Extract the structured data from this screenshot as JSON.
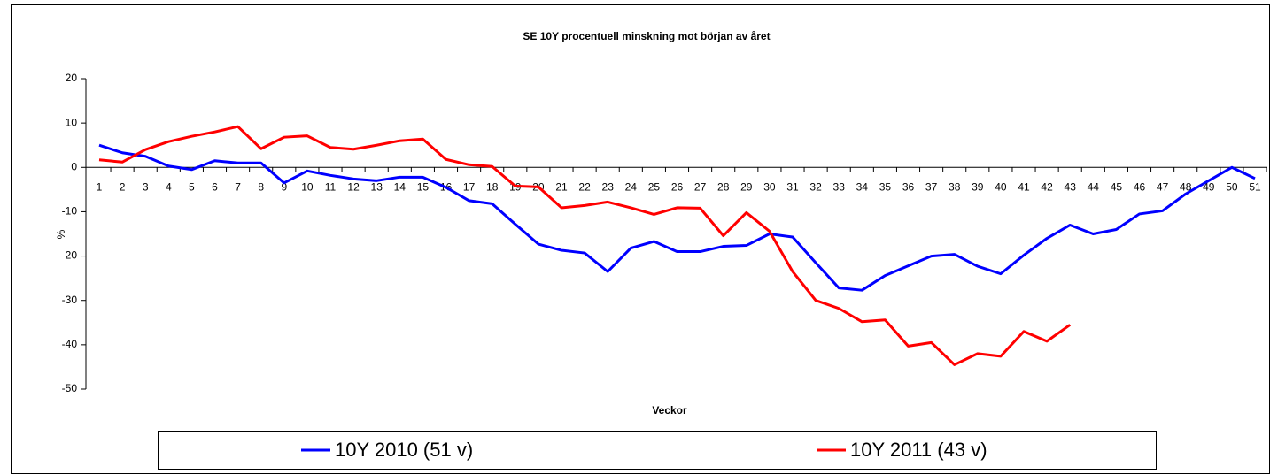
{
  "chart_data": {
    "type": "line",
    "title": "SE 10Y procentuell minskning mot början av året",
    "x_label": "Veckor",
    "y_label": "%",
    "categories": [
      1,
      2,
      3,
      4,
      5,
      6,
      7,
      8,
      9,
      10,
      11,
      12,
      13,
      14,
      15,
      16,
      17,
      18,
      19,
      20,
      21,
      22,
      23,
      24,
      25,
      26,
      27,
      28,
      29,
      30,
      31,
      32,
      33,
      34,
      35,
      36,
      37,
      38,
      39,
      40,
      41,
      42,
      43,
      44,
      45,
      46,
      47,
      48,
      49,
      50,
      51
    ],
    "series": [
      {
        "name": "10Y 2010 (51 v)",
        "color": "#0000ff",
        "values": [
          5,
          3.3,
          2.5,
          0.3,
          -0.5,
          1.5,
          1,
          1,
          -3.5,
          -0.8,
          -1.8,
          -2.6,
          -3,
          -2.2,
          -2.2,
          -4.5,
          -7.5,
          -8.2,
          -12.8,
          -17.3,
          -18.7,
          -19.3,
          -23.5,
          -18.2,
          -16.7,
          -19,
          -19,
          -17.8,
          -17.6,
          -15,
          -15.7,
          -21.5,
          -27.2,
          -27.7,
          -24.4,
          -22.2,
          -20,
          -19.6,
          -22.3,
          -24,
          -19.8,
          -16,
          -13,
          -15,
          -14,
          -10.5,
          -9.8,
          -6,
          -3,
          0,
          -2.5
        ]
      },
      {
        "name": "10Y 2011 (43 v)",
        "color": "#ff0000",
        "values": [
          1.7,
          1.2,
          4,
          5.8,
          7,
          8,
          9.2,
          4.2,
          6.8,
          7.1,
          4.5,
          4.1,
          5,
          6,
          6.4,
          1.8,
          0.6,
          0.2,
          -4.2,
          -4.4,
          -9.1,
          -8.6,
          -7.8,
          -9.1,
          -10.6,
          -9.1,
          -9.2,
          -15.4,
          -10.2,
          -14.4,
          -23.5,
          -30,
          -31.8,
          -34.8,
          -34.4,
          -40.3,
          -39.5,
          -44.5,
          -42,
          -42.6,
          -37,
          -39.2,
          -35.5,
          null,
          null,
          null,
          null,
          null,
          null,
          null,
          null
        ]
      }
    ],
    "ylim": [
      -50,
      20
    ],
    "yticks": [
      20,
      10,
      0,
      -10,
      -20,
      -30,
      -40,
      -50
    ],
    "grid": false
  }
}
